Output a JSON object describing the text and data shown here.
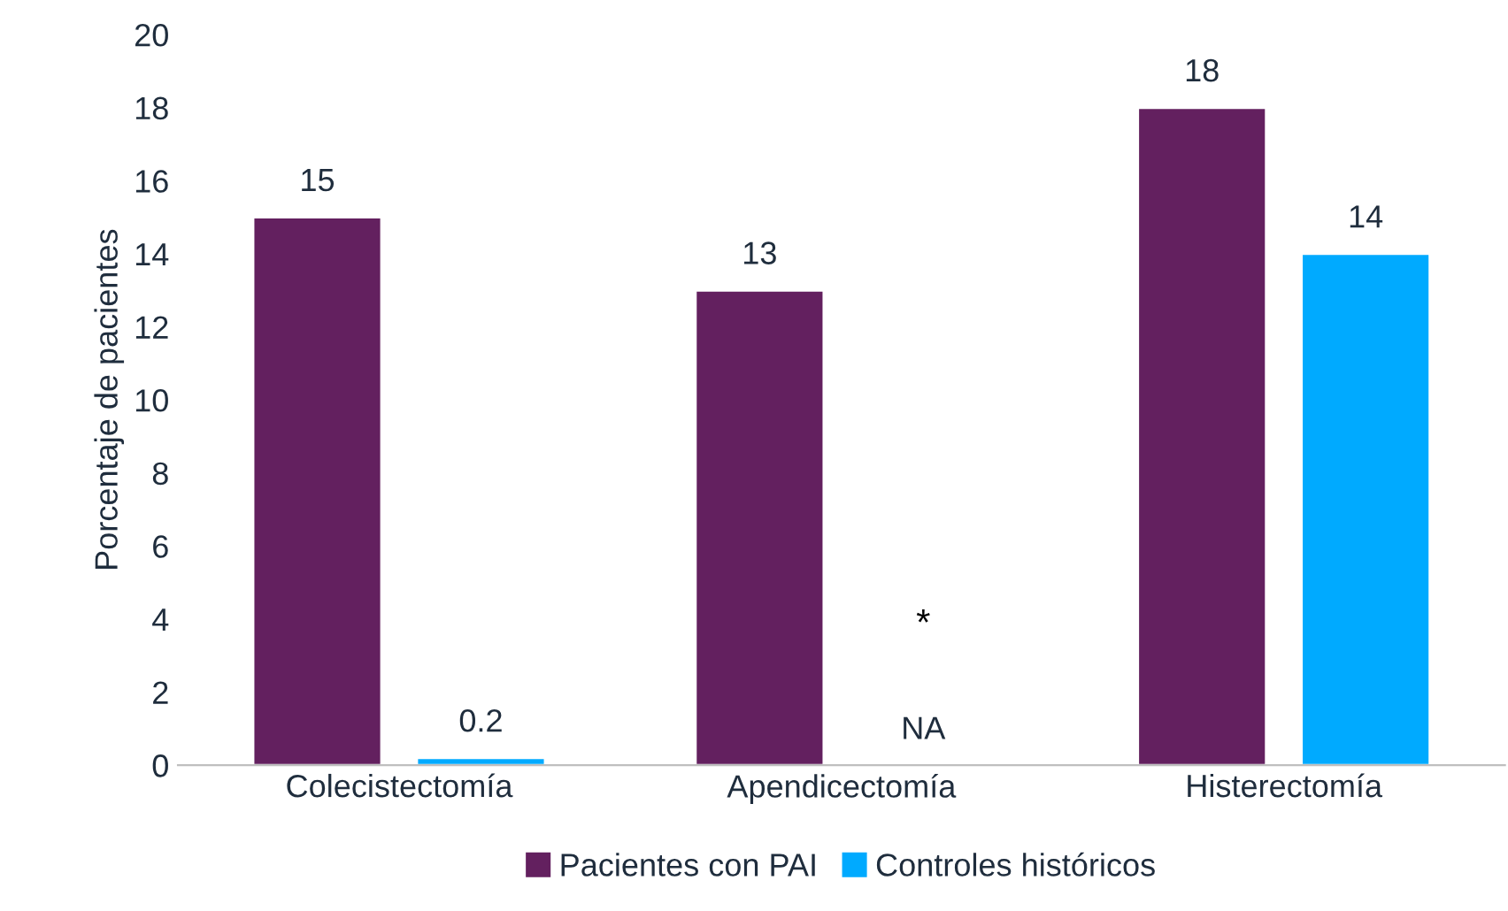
{
  "chart_data": {
    "type": "bar",
    "ylabel": "Porcentaje de pacientes",
    "categories": [
      "Colecistectomía",
      "Apendicectomía",
      "Histerectomía"
    ],
    "series": [
      {
        "name": "Pacientes con PAI",
        "color": "#63205f",
        "values": [
          15,
          13,
          18
        ],
        "value_labels": [
          "15",
          "13",
          "18"
        ]
      },
      {
        "name": "Controles históricos",
        "color": "#00aaff",
        "values": [
          0.2,
          null,
          14
        ],
        "value_labels": [
          "0.2",
          "NA",
          "14"
        ]
      }
    ],
    "ylim": [
      0,
      20
    ],
    "yticks": [
      0,
      2,
      4,
      6,
      8,
      10,
      12,
      14,
      16,
      18,
      20
    ],
    "annotations": [
      "*"
    ],
    "grid": false,
    "legend": "bottom"
  }
}
